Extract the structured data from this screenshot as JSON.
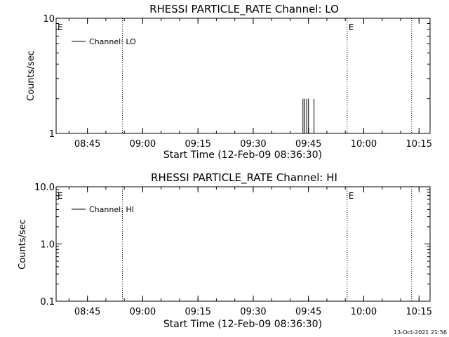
{
  "chart_data": [
    {
      "type": "line",
      "title": "RHESSI PARTICLE_RATE Channel: LO",
      "xlabel": "Start Time (12-Feb-09 08:36:30)",
      "ylabel": "Counts/sec",
      "yscale": "log",
      "ylim": [
        1,
        10
      ],
      "xlim": [
        "08:36:30",
        "10:18:00"
      ],
      "x_ticks": [
        "08:45",
        "09:00",
        "09:15",
        "09:30",
        "09:45",
        "10:00",
        "10:15"
      ],
      "y_ticks": [
        "1",
        "10"
      ],
      "legend": {
        "placement": "top-left",
        "entries": [
          "Channel: LO"
        ]
      },
      "series": [
        {
          "name": "Channel: LO",
          "points": [
            {
              "x": "09:43:30",
              "y": 2
            },
            {
              "x": "09:44:00",
              "y": 2
            },
            {
              "x": "09:44:30",
              "y": 2
            },
            {
              "x": "09:45:00",
              "y": 2
            },
            {
              "x": "09:46:30",
              "y": 2
            }
          ]
        }
      ],
      "vertical_markers": [
        "08:54:30",
        "09:55:30",
        "10:13:00"
      ],
      "marker_labels": [
        {
          "x": "08:36:30",
          "text": "E"
        },
        {
          "x": "09:55:30",
          "text": "E"
        }
      ]
    },
    {
      "type": "line",
      "title": "RHESSI PARTICLE_RATE Channel: HI",
      "xlabel": "Start Time (12-Feb-09 08:36:30)",
      "ylabel": "Counts/sec",
      "yscale": "log",
      "ylim": [
        0.1,
        10
      ],
      "xlim": [
        "08:36:30",
        "10:18:00"
      ],
      "x_ticks": [
        "08:45",
        "09:00",
        "09:15",
        "09:30",
        "09:45",
        "10:00",
        "10:15"
      ],
      "y_ticks": [
        "0.1",
        "1.0",
        "10.0"
      ],
      "legend": {
        "placement": "top-left",
        "entries": [
          "Channel: HI"
        ]
      },
      "series": [
        {
          "name": "Channel: HI",
          "points": []
        }
      ],
      "vertical_markers": [
        "08:54:30",
        "09:55:30",
        "10:13:00"
      ],
      "marker_labels": [
        {
          "x": "08:36:30",
          "text": "E"
        },
        {
          "x": "09:55:30",
          "text": "E"
        }
      ]
    }
  ],
  "footer": {
    "timestamp": "13-Oct-2021 21:56"
  }
}
